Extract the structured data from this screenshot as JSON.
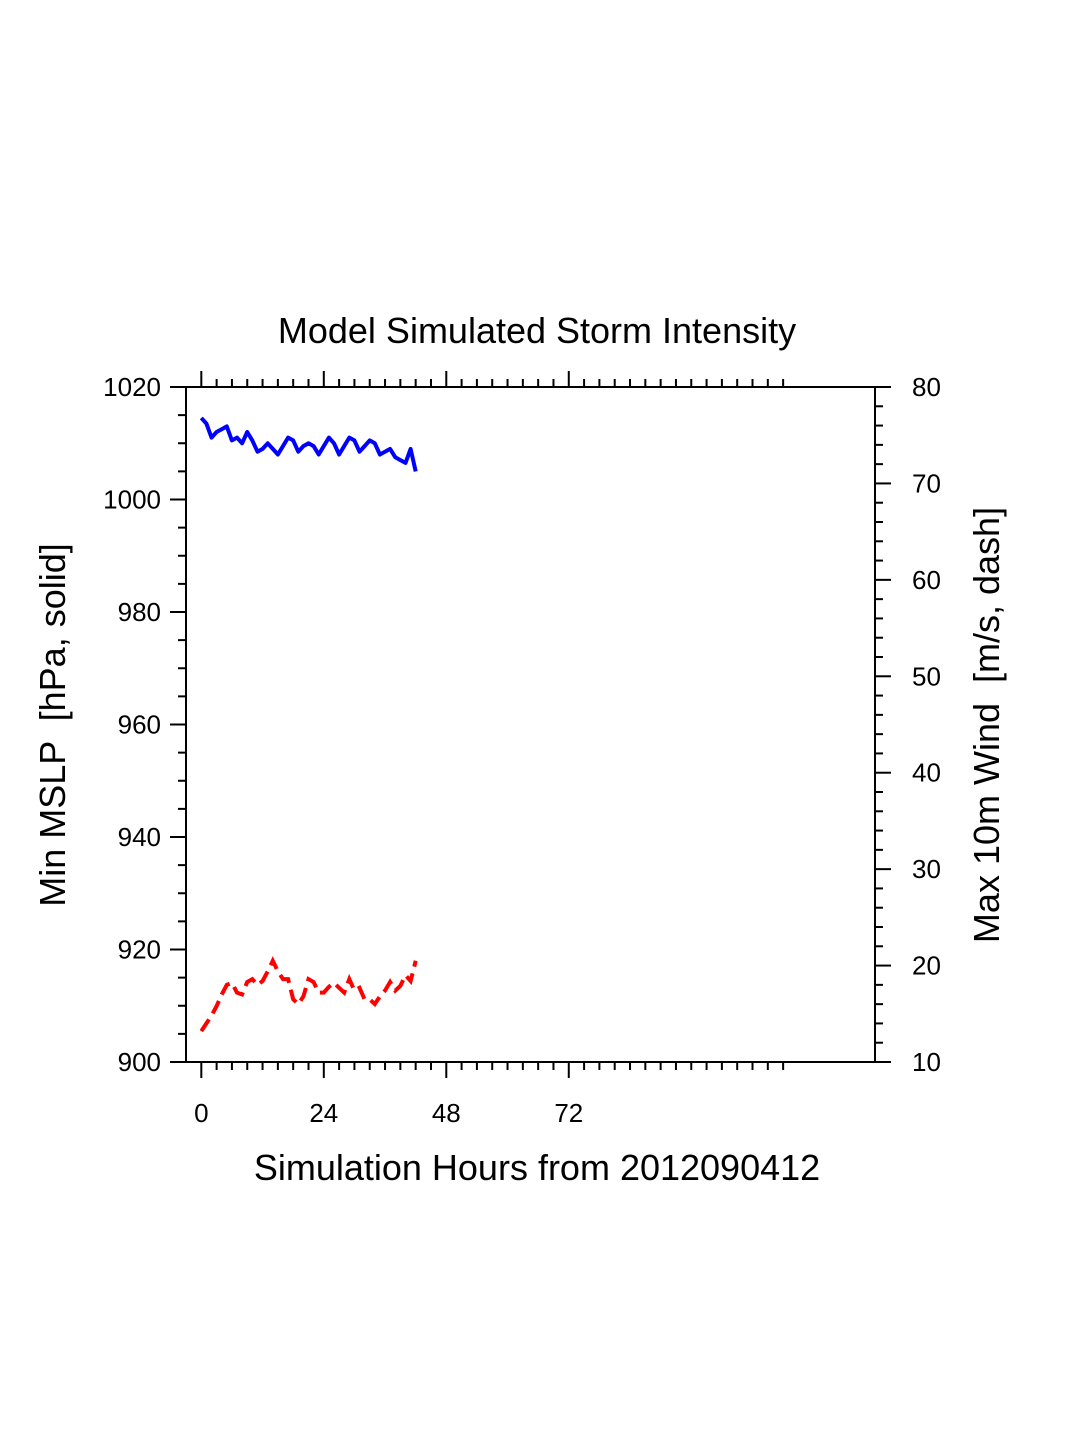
{
  "chart_data": {
    "type": "line",
    "title": "Model Simulated Storm Intensity",
    "xlabel": "Simulation Hours from 2012090412",
    "ylabel_left": "Min MSLP  [hPa, solid]",
    "ylabel_right": "Max 10m Wind  [m/s, dash]",
    "xlim": [
      -3,
      132
    ],
    "ylim_left": [
      900,
      1020
    ],
    "ylim_right": [
      10,
      80
    ],
    "x_ticks": [
      0,
      24,
      48,
      72
    ],
    "x_tick_labels": [
      "0",
      "24",
      "48",
      "72"
    ],
    "y_left_ticks": [
      900,
      920,
      940,
      960,
      980,
      1000,
      1020
    ],
    "y_left_tick_labels": [
      "900",
      "920",
      "940",
      "960",
      "980",
      "1000",
      "1020"
    ],
    "y_right_ticks": [
      10,
      20,
      30,
      40,
      50,
      60,
      70,
      80
    ],
    "y_right_tick_labels": [
      "10",
      "20",
      "30",
      "40",
      "50",
      "60",
      "70",
      "80"
    ],
    "grid": false,
    "colors": {
      "mslp": "#0000ff",
      "wind": "#ff0000"
    },
    "series": [
      {
        "axis": "left",
        "style": "solid",
        "x": [
          0,
          1,
          2,
          3,
          4,
          5,
          6,
          7,
          8,
          9,
          10,
          11,
          12,
          13,
          14,
          15,
          16,
          17,
          18,
          19,
          20,
          21,
          22,
          23,
          24,
          25,
          26,
          27,
          28,
          29,
          30,
          31,
          32,
          33,
          34,
          35,
          36,
          37,
          38,
          39,
          40,
          41,
          42
        ],
        "values": [
          1014.5,
          1013.5,
          1011,
          1012,
          1012.5,
          1013,
          1010.5,
          1011,
          1010,
          1012,
          1010.5,
          1008.5,
          1009,
          1010,
          1009,
          1008,
          1009.5,
          1011,
          1010.5,
          1008.5,
          1009.5,
          1010,
          1009.5,
          1008,
          1009.5,
          1011,
          1010,
          1008,
          1009.5,
          1011,
          1010.5,
          1008.5,
          1009.5,
          1010.5,
          1010,
          1008,
          1008.5,
          1009,
          1007.5,
          1007,
          1006.5,
          1009,
          1005
        ]
      },
      {
        "axis": "right",
        "style": "dash",
        "x": [
          0,
          1,
          2,
          3,
          4,
          5,
          6,
          7,
          8,
          9,
          10,
          11,
          12,
          13,
          14,
          15,
          16,
          17,
          18,
          19,
          20,
          21,
          22,
          23,
          24,
          25,
          26,
          27,
          28,
          29,
          30,
          31,
          32,
          33,
          34,
          35,
          36,
          37,
          38,
          39,
          40,
          41,
          42
        ],
        "values": [
          13.2,
          14,
          14.8,
          15.8,
          17,
          18,
          18.2,
          17.2,
          17,
          18.3,
          18.6,
          18,
          18.4,
          19.4,
          20.5,
          19.4,
          18.6,
          18.6,
          16.5,
          16,
          16.8,
          18.6,
          18.3,
          17.2,
          17.2,
          17.8,
          18.2,
          17.7,
          17.2,
          18.6,
          17.4,
          17.7,
          16.5,
          16.5,
          16,
          16.8,
          17.4,
          18.3,
          17.4,
          17.9,
          19,
          18.4,
          20.5
        ]
      }
    ]
  }
}
